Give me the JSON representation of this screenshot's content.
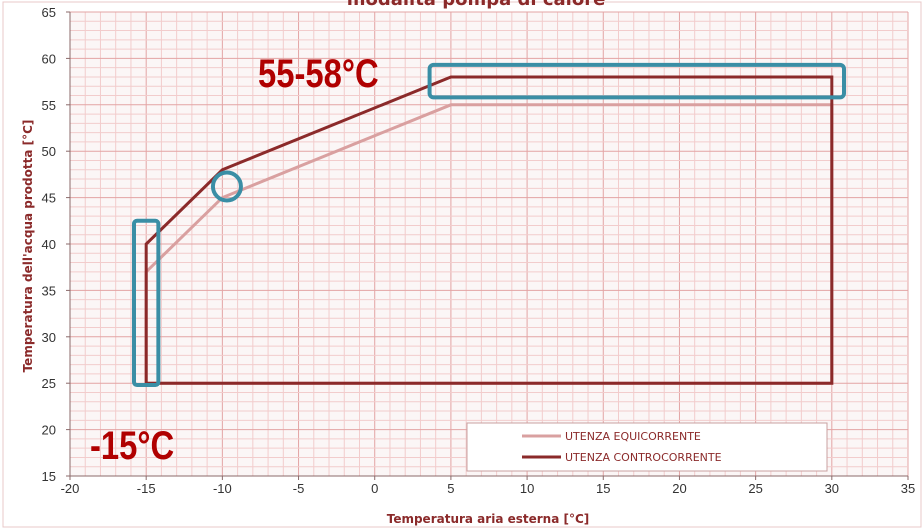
{
  "chart_data": {
    "type": "line",
    "title": "modalità pompa di calore",
    "xlabel": "Temperatura aria esterna [°C]",
    "ylabel": "Temperatura dell'acqua prodotta [°C]",
    "xlim": [
      -20,
      35
    ],
    "ylim": [
      15,
      65
    ],
    "x_ticks": [
      "-20",
      "-15",
      "-10",
      "-5",
      "0",
      "5",
      "10",
      "15",
      "20",
      "25",
      "30",
      "35"
    ],
    "y_ticks": [
      "15",
      "20",
      "25",
      "30",
      "35",
      "40",
      "45",
      "50",
      "55",
      "60",
      "65"
    ],
    "grid": true,
    "legend_position": "bottom-right",
    "series": [
      {
        "name": "UTENZA EQUICORRENTE",
        "color": "#d9a0a0",
        "points": [
          [
            -15,
            25
          ],
          [
            -15,
            37
          ],
          [
            -10,
            45
          ],
          [
            5,
            55
          ],
          [
            30,
            55
          ],
          [
            30,
            25
          ],
          [
            -15,
            25
          ]
        ]
      },
      {
        "name": "UTENZA CONTROCORRENTE",
        "color": "#8b2a2a",
        "points": [
          [
            -15,
            25
          ],
          [
            -15,
            40
          ],
          [
            -10,
            48
          ],
          [
            5,
            58
          ],
          [
            30,
            58
          ],
          [
            30,
            25
          ],
          [
            -15,
            25
          ]
        ]
      }
    ],
    "annotations": [
      {
        "text": "55-58°C",
        "color": "#b00000"
      },
      {
        "text": "-15°C",
        "color": "#b00000"
      }
    ],
    "highlight_color": "#3a8ea5"
  }
}
